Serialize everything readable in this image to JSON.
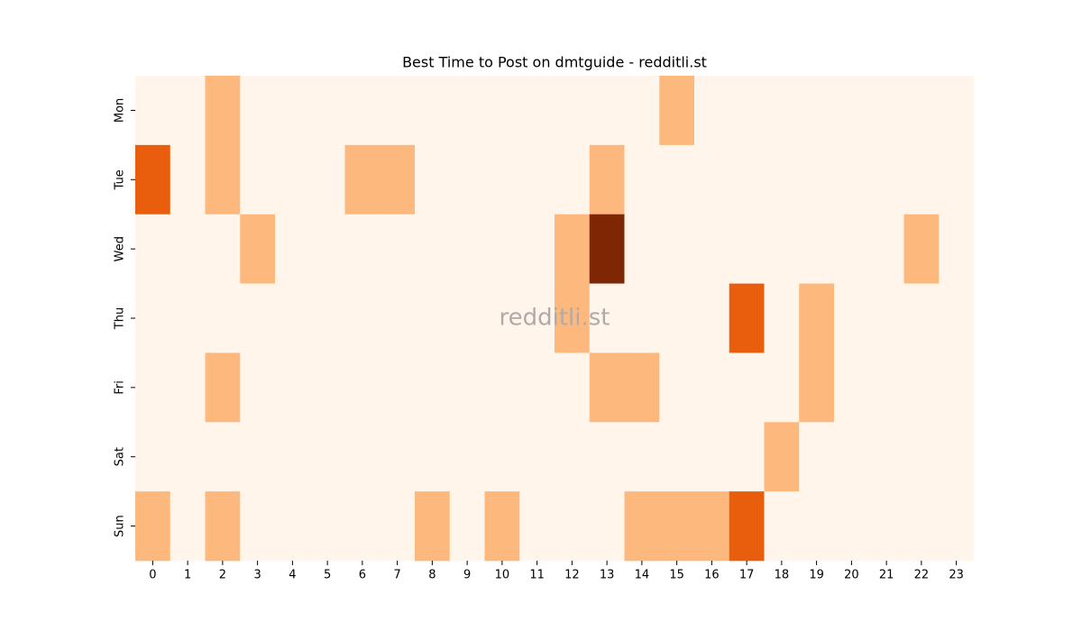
{
  "chart_data": {
    "type": "heatmap",
    "title": "Best Time to Post on dmtguide - redditli.st",
    "watermark": "redditli.st",
    "x": [
      0,
      1,
      2,
      3,
      4,
      5,
      6,
      7,
      8,
      9,
      10,
      11,
      12,
      13,
      14,
      15,
      16,
      17,
      18,
      19,
      20,
      21,
      22,
      23
    ],
    "y": [
      "Mon",
      "Tue",
      "Wed",
      "Thu",
      "Fri",
      "Sat",
      "Sun"
    ],
    "values": [
      [
        0,
        0,
        1,
        0,
        0,
        0,
        0,
        0,
        0,
        0,
        0,
        0,
        0,
        0,
        0,
        1,
        0,
        0,
        0,
        0,
        0,
        0,
        0,
        0
      ],
      [
        2,
        0,
        1,
        0,
        0,
        0,
        1,
        1,
        0,
        0,
        0,
        0,
        0,
        1,
        0,
        0,
        0,
        0,
        0,
        0,
        0,
        0,
        0,
        0
      ],
      [
        0,
        0,
        0,
        1,
        0,
        0,
        0,
        0,
        0,
        0,
        0,
        0,
        1,
        3,
        0,
        0,
        0,
        0,
        0,
        0,
        0,
        0,
        1,
        0
      ],
      [
        0,
        0,
        0,
        0,
        0,
        0,
        0,
        0,
        0,
        0,
        0,
        0,
        1,
        0,
        0,
        0,
        0,
        2,
        0,
        1,
        0,
        0,
        0,
        0
      ],
      [
        0,
        0,
        1,
        0,
        0,
        0,
        0,
        0,
        0,
        0,
        0,
        0,
        0,
        1,
        1,
        0,
        0,
        0,
        0,
        1,
        0,
        0,
        0,
        0
      ],
      [
        0,
        0,
        0,
        0,
        0,
        0,
        0,
        0,
        0,
        0,
        0,
        0,
        0,
        0,
        0,
        0,
        0,
        0,
        1,
        0,
        0,
        0,
        0,
        0
      ],
      [
        1,
        0,
        1,
        0,
        0,
        0,
        0,
        0,
        1,
        0,
        1,
        0,
        0,
        0,
        1,
        1,
        1,
        2,
        0,
        0,
        0,
        0,
        0,
        0
      ]
    ],
    "vlim": [
      0,
      3
    ],
    "colors": [
      "#fff5eb",
      "#fdb97d",
      "#e95e0d",
      "#7f2704"
    ]
  }
}
